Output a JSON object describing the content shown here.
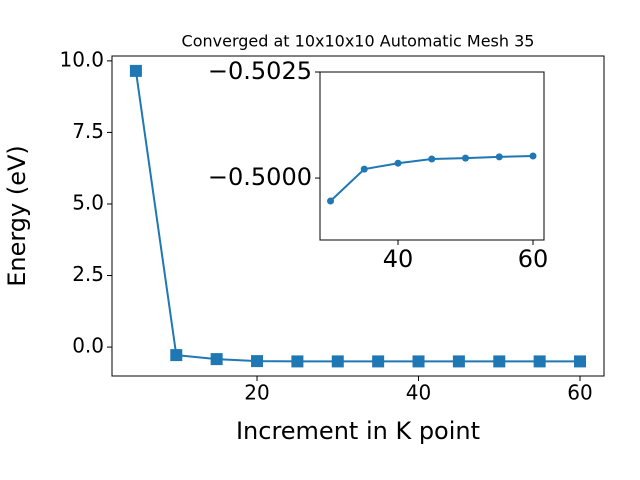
{
  "chart_data": [
    {
      "type": "line",
      "title": "Converged at 10x10x10 Automatic Mesh 35",
      "x_label": "Increment in K point",
      "y_label": "Energy (eV)",
      "x": [
        5,
        10,
        15,
        20,
        25,
        30,
        35,
        40,
        45,
        50,
        55,
        60
      ],
      "series": [
        {
          "color": "#1f77b4",
          "marker": "square",
          "values": [
            9.65,
            -0.28,
            -0.42,
            -0.49,
            -0.5,
            -0.5,
            -0.5,
            -0.5,
            -0.5,
            -0.5,
            -0.5,
            -0.5
          ]
        }
      ],
      "xlim": [
        2.04,
        62.97
      ],
      "xticks": [
        20,
        40,
        60
      ],
      "ylim": [
        -1.01,
        10.17
      ],
      "yticks": [
        {
          "value": 0,
          "label": "0.0"
        },
        {
          "value": 2.5,
          "label": "2.5"
        },
        {
          "value": 5,
          "label": "5.0"
        },
        {
          "value": 7.5,
          "label": "7.5"
        },
        {
          "value": 10,
          "label": "10.0"
        }
      ]
    },
    {
      "type": "line",
      "x": [
        30,
        35,
        40,
        45,
        50,
        55,
        60
      ],
      "series": [
        {
          "color": "#1f77b4",
          "marker": "circle",
          "values": [
            -0.49946,
            -0.50021,
            -0.50035,
            -0.50045,
            -0.50047,
            -0.5005,
            -0.50052
          ]
        }
      ],
      "xlim": [
        28.44,
        61.63
      ],
      "xticks": [
        40,
        60
      ],
      "ylim": [
        -0.49854,
        -0.5025
      ],
      "yticks": [
        {
          "value": -0.5,
          "label": "−0.5000"
        },
        {
          "value": -0.5025,
          "label": "−0.5025"
        }
      ]
    }
  ]
}
